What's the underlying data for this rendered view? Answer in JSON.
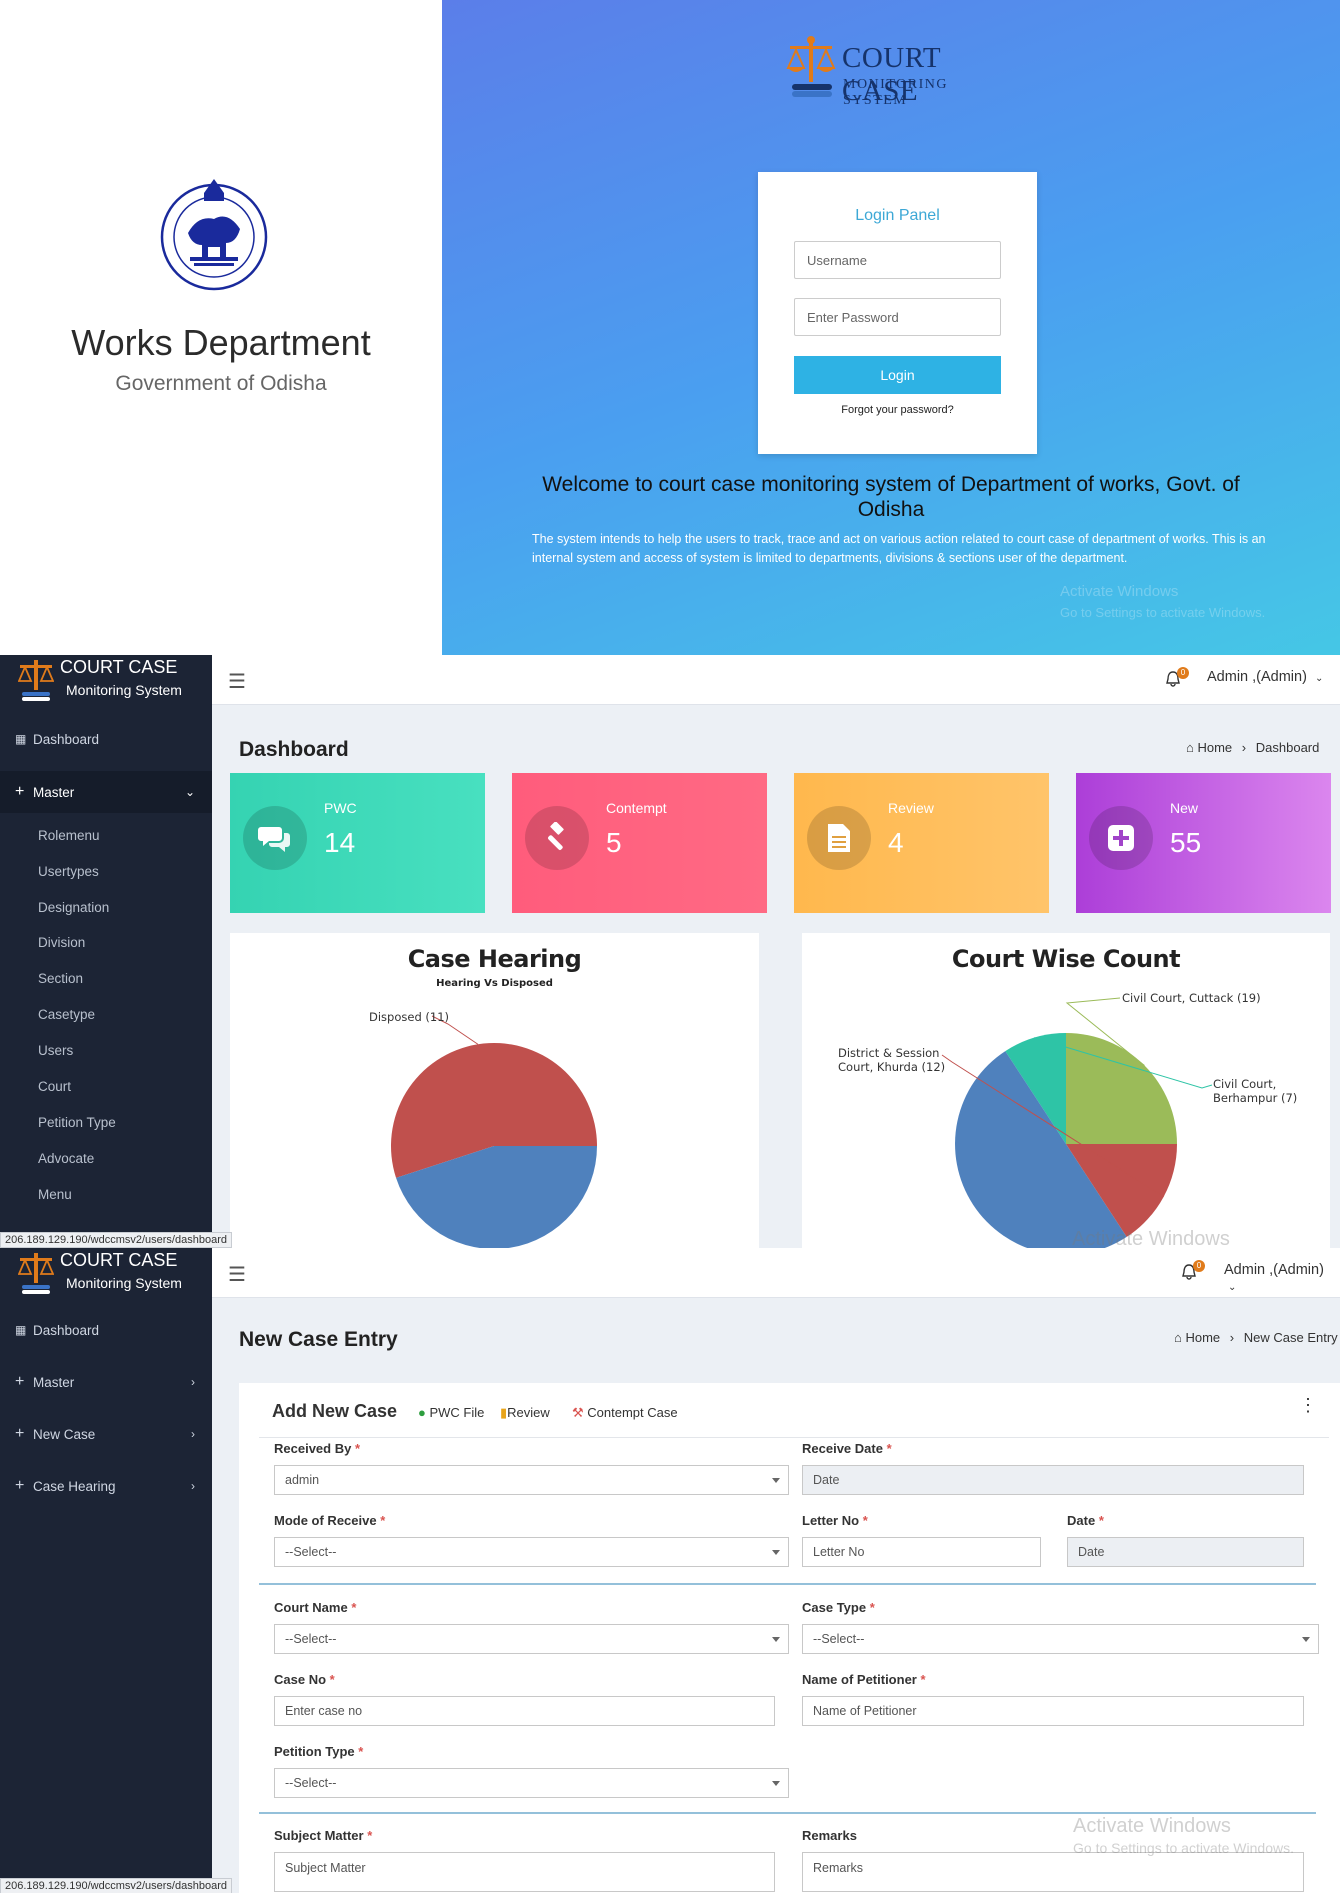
{
  "login": {
    "department": "Works Department",
    "government": "Government of Odisha",
    "brand_title": "COURT CASE",
    "brand_subtitle": "MONITORING SYSTEM",
    "panel_title": "Login Panel",
    "username_placeholder": "Username",
    "password_placeholder": "Enter Password",
    "login_button": "Login",
    "forgot_link": "Forgot your password?",
    "welcome": "Welcome to court case monitoring system of Department of works, Govt. of Odisha",
    "description": "The system intends to help the users to track, trace and act on various action related to court case of department of works. This is an internal system and access of system is limited to departments, divisions & sections user of the department.",
    "activate_line1": "Activate Windows",
    "activate_line2": "Go to Settings to activate Windows."
  },
  "app": {
    "logo_title": "COURT CASE",
    "logo_subtitle": "Monitoring System",
    "notification_count": "0",
    "user": "Admin ,(Admin)",
    "status_url": "206.189.129.190/wdccmsv2/users/dashboard",
    "home": "Home"
  },
  "dashboard": {
    "title": "Dashboard",
    "breadcrumb_current": "Dashboard",
    "sidebar": {
      "dashboard": "Dashboard",
      "master": "Master",
      "master_items": [
        "Rolemenu",
        "Usertypes",
        "Designation",
        "Division",
        "Section",
        "Casetype",
        "Users",
        "Court",
        "Petition Type",
        "Advocate",
        "Menu"
      ]
    },
    "cards": [
      {
        "label": "PWC",
        "value": "14",
        "color": "#3ed8b0"
      },
      {
        "label": "Contempt",
        "value": "5",
        "color": "#ff5f7e"
      },
      {
        "label": "Review",
        "value": "4",
        "color": "#ffbb55"
      },
      {
        "label": "New",
        "value": "55",
        "color": "#b94ee0"
      }
    ],
    "activate_text": "Activate Windows"
  },
  "chart_data": [
    {
      "type": "pie",
      "title": "Case Hearing",
      "subtitle": "Hearing Vs Disposed",
      "slices": [
        {
          "label": "Disposed (11)",
          "value": 11,
          "color": "#c0504d"
        },
        {
          "label": "",
          "value": 9,
          "color": "#4f81bd"
        }
      ]
    },
    {
      "type": "pie",
      "title": "Court Wise Count",
      "slices": [
        {
          "label": "Civil Court, Cuttack (19)",
          "value": 19,
          "color": "#9bbb59"
        },
        {
          "label": "Civil Court, Berhampur (7)",
          "value": 7,
          "color": "#2ec4a6"
        },
        {
          "label": "",
          "value": 38,
          "color": "#4f81bd"
        },
        {
          "label": "District & Session Court, Khurda (12)",
          "value": 12,
          "color": "#c0504d"
        }
      ]
    }
  ],
  "newcase": {
    "title": "New Case Entry",
    "breadcrumb_current": "New Case Entry",
    "sidebar": {
      "dashboard": "Dashboard",
      "master": "Master",
      "new_case": "New Case",
      "case_hearing": "Case Hearing"
    },
    "form_title": "Add New Case",
    "links": {
      "pwc": "PWC File",
      "review": "Review",
      "contempt": "Contempt Case"
    },
    "fields": {
      "received_by": {
        "label": "Received By",
        "value": "admin"
      },
      "receive_date": {
        "label": "Receive Date",
        "placeholder": "Date"
      },
      "mode_of_receive": {
        "label": "Mode of Receive",
        "value": "--Select--"
      },
      "letter_no": {
        "label": "Letter No",
        "placeholder": "Letter No"
      },
      "date": {
        "label": "Date",
        "placeholder": "Date"
      },
      "court_name": {
        "label": "Court Name",
        "value": "--Select--"
      },
      "case_type": {
        "label": "Case Type",
        "value": "--Select--"
      },
      "case_no": {
        "label": "Case No",
        "placeholder": "Enter case no"
      },
      "petitioner": {
        "label": "Name of Petitioner",
        "placeholder": "Name of Petitioner"
      },
      "petition_type": {
        "label": "Petition Type",
        "value": "--Select--"
      },
      "subject_matter": {
        "label": "Subject Matter",
        "placeholder": "Subject Matter"
      },
      "remarks": {
        "label": "Remarks",
        "placeholder": "Remarks"
      }
    },
    "activate_line1": "Activate Windows",
    "activate_line2": "Go to Settings to activate Windows."
  }
}
